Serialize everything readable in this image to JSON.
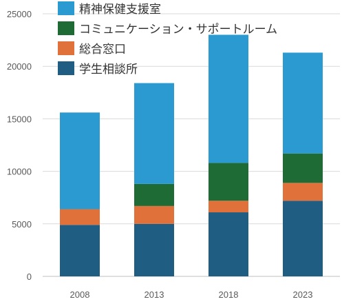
{
  "chart_data": {
    "type": "bar",
    "stacked": true,
    "categories": [
      "2008",
      "2013",
      "2018",
      "2023"
    ],
    "series": [
      {
        "name": "学生相談所",
        "color": "#1f5e82",
        "values": [
          4900,
          5000,
          6100,
          7200
        ]
      },
      {
        "name": "総合窓口",
        "color": "#e0713a",
        "values": [
          1500,
          1700,
          1100,
          1700
        ]
      },
      {
        "name": "コミュニケーション・サポートルーム",
        "color": "#1e6b35",
        "values": [
          0,
          2100,
          3600,
          2800
        ]
      },
      {
        "name": "精神保健支援室",
        "color": "#2b9ad0",
        "values": [
          9200,
          9600,
          12200,
          9600
        ]
      }
    ],
    "legend_order": [
      "精神保健支援室",
      "コミュニケーション・サポートルーム",
      "総合窓口",
      "学生相談所"
    ],
    "y_ticks": [
      "0",
      "5000",
      "10000",
      "15000",
      "20000",
      "25000"
    ],
    "ylim": [
      0,
      25000
    ],
    "grid": true,
    "legend_position": "top-left",
    "title": "",
    "xlabel": "",
    "ylabel": ""
  }
}
